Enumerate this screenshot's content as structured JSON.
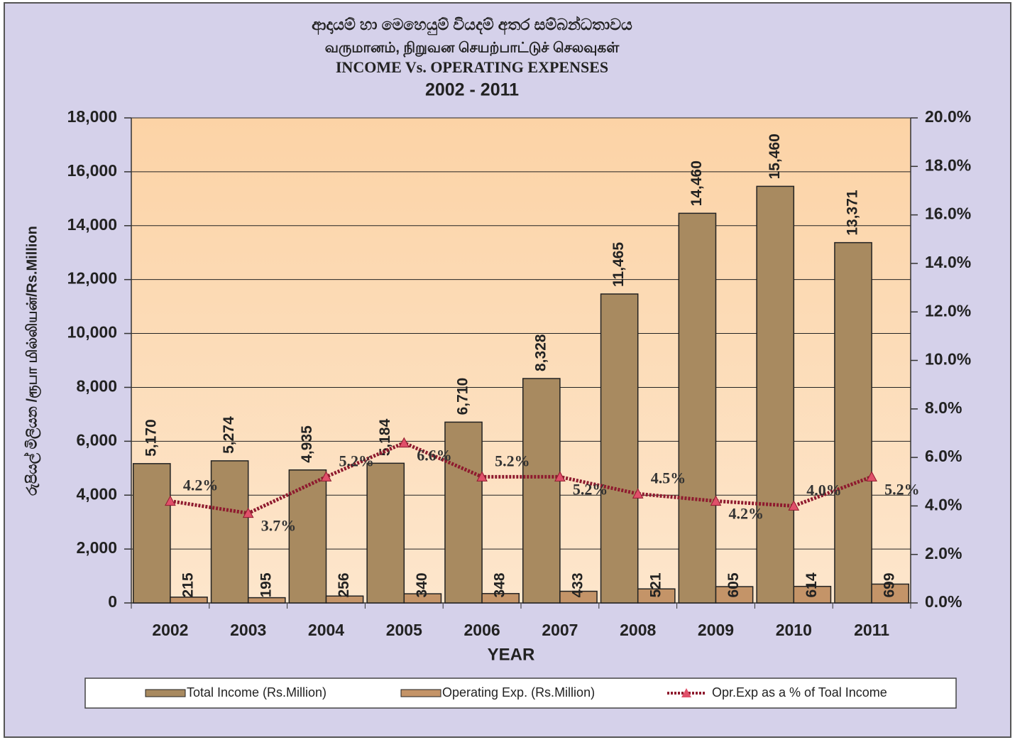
{
  "chart_data": {
    "type": "bar",
    "title": "ආදායම් හා මෙහෙයුම් වියදම් අතර සම්බන්ධතාවය",
    "subtitle": "வருமானம், நிறுவன செயற்பாட்டுச் செலவுகள்",
    "title_english": "INCOME Vs. OPERATING EXPENSES",
    "period": "2002 - 2011",
    "y_label": "රුපියල් මිලියන /ரூபா மில்லியன்/Rs.Million",
    "x_label": "YEAR",
    "categories": [
      "2002",
      "2003",
      "2004",
      "2005",
      "2006",
      "2007",
      "2008",
      "2009",
      "2010",
      "2011"
    ],
    "series": [
      {
        "name": "Total Income (Rs.Million)",
        "color": "#a88a60",
        "type": "bar",
        "values": [
          5170,
          5274,
          4935,
          5184,
          6710,
          8328,
          11465,
          14460,
          15460,
          13371
        ],
        "value_labels": [
          "5,170",
          "5,274",
          "4,935",
          "5,184",
          "6,710",
          "8,328",
          "11,465",
          "14,460",
          "15,460",
          "13,371"
        ]
      },
      {
        "name": "Operating Exp. (Rs.Million)",
        "color": "#c49468",
        "type": "bar",
        "values": [
          215,
          195,
          256,
          340,
          348,
          433,
          521,
          605,
          614,
          699
        ]
      },
      {
        "name": "Opr.Exp as a % of Toal Income",
        "color": "#8e1a2e",
        "marker_color": "#e0506a",
        "type": "line",
        "axis": "y2",
        "values": [
          4.2,
          3.7,
          5.2,
          6.6,
          5.2,
          5.2,
          4.5,
          4.2,
          4.0,
          5.2
        ],
        "value_labels": [
          "4.2%",
          "3.7%",
          "5.2%",
          "6.6%",
          "5.2%",
          "5.2%",
          "4.5%",
          "4.2%",
          "4.0%",
          "5.2%"
        ]
      }
    ],
    "ylim": [
      0,
      18000
    ],
    "yticks": [
      {
        "value": 0,
        "label": "0"
      },
      {
        "value": 2000,
        "label": "2,000"
      },
      {
        "value": 4000,
        "label": "4,000"
      },
      {
        "value": 6000,
        "label": "6,000"
      },
      {
        "value": 8000,
        "label": "8,000"
      },
      {
        "value": 10000,
        "label": "10,000"
      },
      {
        "value": 12000,
        "label": "12,000"
      },
      {
        "value": 14000,
        "label": "14,000"
      },
      {
        "value": 16000,
        "label": "16,000"
      },
      {
        "value": 18000,
        "label": "18,000"
      }
    ],
    "y2lim": [
      0,
      20
    ],
    "y2ticks": [
      {
        "value": 0,
        "label": "0.0%"
      },
      {
        "value": 2,
        "label": "2.0%"
      },
      {
        "value": 4,
        "label": "4.0%"
      },
      {
        "value": 6,
        "label": "6.0%"
      },
      {
        "value": 8,
        "label": "8.0%"
      },
      {
        "value": 10,
        "label": "10.0%"
      },
      {
        "value": 12,
        "label": "12.0%"
      },
      {
        "value": 14,
        "label": "14.0%"
      },
      {
        "value": 16,
        "label": "16.0%"
      },
      {
        "value": 18,
        "label": "18.0%"
      },
      {
        "value": 20,
        "label": "20.0%"
      }
    ],
    "grid": true,
    "legend": "bottom"
  }
}
